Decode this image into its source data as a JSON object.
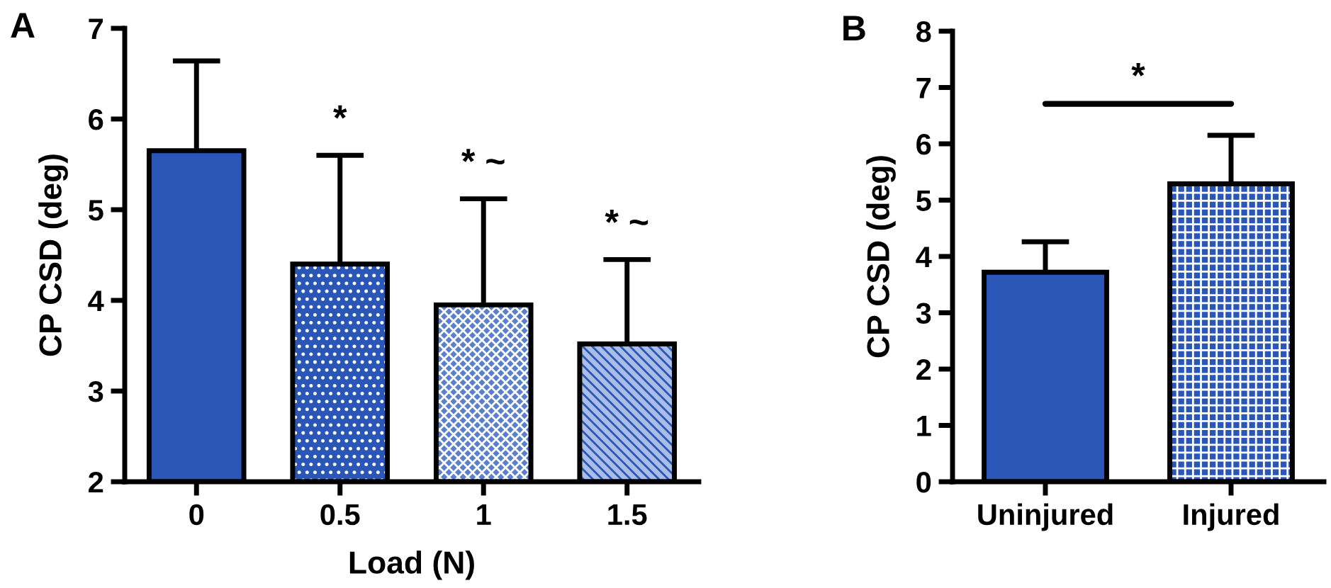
{
  "chart_data": [
    {
      "type": "bar",
      "title": "A",
      "xlabel": "Load (N)",
      "ylabel": "CP CSD (deg)",
      "categories": [
        "0",
        "0.5",
        "1",
        "1.5"
      ],
      "values": [
        5.65,
        4.4,
        3.95,
        3.52
      ],
      "errors": [
        0.99,
        1.2,
        1.17,
        0.93
      ],
      "colors": [
        "#2a56b8",
        "#2a56b8",
        "#5a7fcf",
        "#a9bde6"
      ],
      "ylim": [
        2,
        7
      ],
      "yticks": [
        2,
        3,
        4,
        5,
        6,
        7
      ],
      "grid": false,
      "annotations": [
        {
          "text": "*",
          "x": "0.5",
          "y": 5.6
        },
        {
          "text": "* ~",
          "x": "1",
          "y": 5.12
        },
        {
          "text": "* ~",
          "x": "1.5",
          "y": 4.45
        }
      ]
    },
    {
      "type": "bar",
      "title": "B",
      "ylabel": "CP CSD (deg)",
      "categories": [
        "Uninjured",
        "Injured"
      ],
      "values": [
        3.72,
        5.29
      ],
      "errors": [
        0.54,
        0.86
      ],
      "colors": [
        "#2a56b8",
        "#2a56b8"
      ],
      "ylim": [
        0,
        8
      ],
      "yticks": [
        0,
        1,
        2,
        3,
        4,
        5,
        6,
        7,
        8
      ],
      "grid": false,
      "annotations": [
        "*"
      ]
    }
  ]
}
